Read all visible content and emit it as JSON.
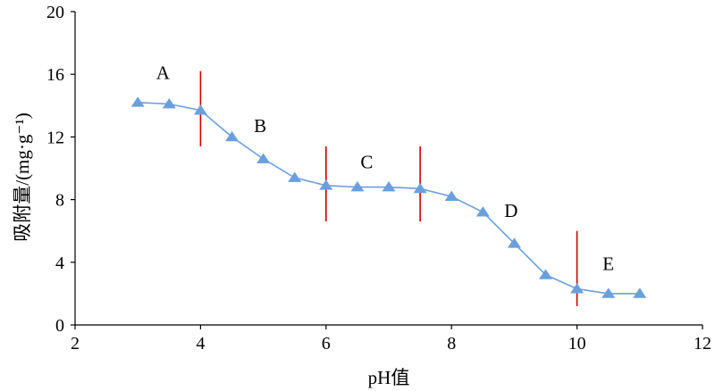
{
  "chart_data": {
    "type": "line",
    "xlabel": "pH值",
    "ylabel": "吸附量/(mg·g⁻¹)",
    "xlim": [
      2,
      12
    ],
    "ylim": [
      0,
      20
    ],
    "xticks": [
      "2",
      "4",
      "6",
      "8",
      "10",
      "12"
    ],
    "yticks": [
      "0",
      "4",
      "8",
      "12",
      "16",
      "20"
    ],
    "grid": false,
    "series": [
      {
        "marker": "triangle",
        "color": "#6a9fdf",
        "x": [
          3,
          3.5,
          4,
          4.5,
          5,
          5.5,
          6,
          6.5,
          7,
          7.5,
          8,
          8.5,
          9,
          9.5,
          10,
          10.5,
          11
        ],
        "y": [
          14.2,
          14.1,
          13.7,
          12.0,
          10.6,
          9.4,
          8.9,
          8.8,
          8.8,
          8.7,
          8.2,
          7.2,
          5.2,
          3.2,
          2.3,
          2.0,
          2.0
        ]
      }
    ],
    "boundaries": [
      {
        "x": 4,
        "y_range": [
          11.4,
          16.2
        ],
        "color": "#cc0000"
      },
      {
        "x": 6,
        "y_range": [
          6.6,
          11.4
        ],
        "color": "#cc0000"
      },
      {
        "x": 7.5,
        "y_range": [
          6.6,
          11.4
        ],
        "color": "#cc0000"
      },
      {
        "x": 10,
        "y_range": [
          1.2,
          6.0
        ],
        "color": "#cc0000"
      }
    ],
    "annotations": [
      {
        "text": "A",
        "x": 3.4,
        "y": 15.7
      },
      {
        "text": "B",
        "x": 4.95,
        "y": 12.3
      },
      {
        "text": "C",
        "x": 6.65,
        "y": 10.0
      },
      {
        "text": "D",
        "x": 8.95,
        "y": 6.9
      },
      {
        "text": "E",
        "x": 10.5,
        "y": 3.5
      }
    ]
  }
}
